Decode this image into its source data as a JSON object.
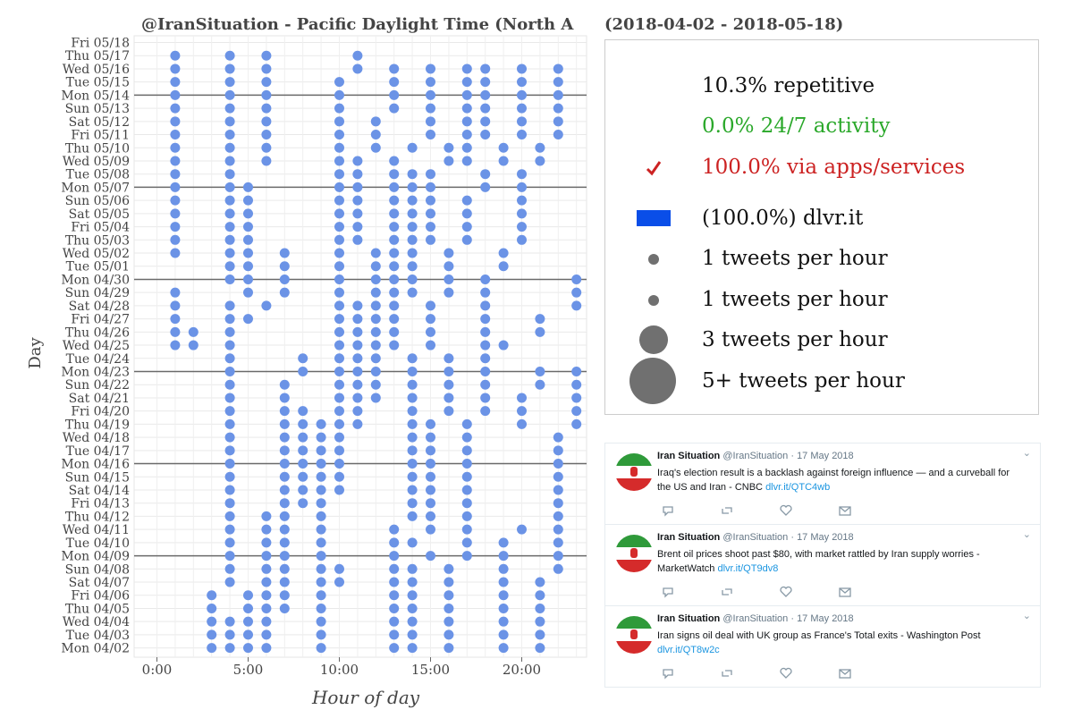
{
  "chart_data": {
    "type": "scatter",
    "title_left": "@IranSituation - Pacific Daylight Time (North A",
    "title_right": "(2018-04-02 - 2018-05-18)",
    "xlabel": "Hour of day",
    "ylabel": "Day",
    "xlim": [
      -0.5,
      23.5
    ],
    "x_ticks": [
      0,
      5,
      10,
      15,
      20
    ],
    "x_tick_labels": [
      "0:00",
      "5:00",
      "10:00",
      "15:00",
      "20:00"
    ],
    "grid": true,
    "days": [
      "Fri 05/18",
      "Thu 05/17",
      "Wed 05/16",
      "Tue 05/15",
      "Mon 05/14",
      "Sun 05/13",
      "Sat 05/12",
      "Fri 05/11",
      "Thu 05/10",
      "Wed 05/09",
      "Tue 05/08",
      "Mon 05/07",
      "Sun 05/06",
      "Sat 05/05",
      "Fri 05/04",
      "Thu 05/03",
      "Wed 05/02",
      "Tue 05/01",
      "Mon 04/30",
      "Sun 04/29",
      "Sat 04/28",
      "Fri 04/27",
      "Thu 04/26",
      "Wed 04/25",
      "Tue 04/24",
      "Mon 04/23",
      "Sun 04/22",
      "Sat 04/21",
      "Fri 04/20",
      "Thu 04/19",
      "Wed 04/18",
      "Tue 04/17",
      "Mon 04/16",
      "Sun 04/15",
      "Sat 04/14",
      "Fri 04/13",
      "Thu 04/12",
      "Wed 04/11",
      "Tue 04/10",
      "Mon 04/09",
      "Sun 04/08",
      "Sat 04/07",
      "Fri 04/06",
      "Thu 04/05",
      "Wed 04/04",
      "Tue 04/03",
      "Mon 04/02"
    ],
    "monday_separators": [
      "Mon 05/14",
      "Mon 05/07",
      "Mon 04/30",
      "Mon 04/23",
      "Mon 04/16",
      "Mon 04/09"
    ],
    "series": [
      {
        "name": "dlvr.it",
        "color": "#6b93e6",
        "hours_by_day": [
          [],
          [
            1,
            4,
            6,
            11
          ],
          [
            1,
            4,
            6,
            11,
            13,
            15,
            17,
            18,
            20,
            22
          ],
          [
            1,
            4,
            6,
            10,
            13,
            15,
            17,
            18,
            20,
            22
          ],
          [
            1,
            4,
            6,
            10,
            13,
            15,
            17,
            18,
            20,
            22
          ],
          [
            1,
            4,
            6,
            10,
            13,
            15,
            17,
            18,
            20,
            22
          ],
          [
            1,
            4,
            6,
            10,
            12,
            15,
            17,
            18,
            20,
            22
          ],
          [
            1,
            4,
            6,
            10,
            12,
            15,
            17,
            18,
            20,
            22
          ],
          [
            1,
            4,
            6,
            10,
            12,
            14,
            16,
            17,
            19,
            21
          ],
          [
            1,
            4,
            6,
            10,
            11,
            13,
            16,
            17,
            19,
            21
          ],
          [
            1,
            4,
            10,
            11,
            13,
            14,
            15,
            18,
            20
          ],
          [
            1,
            4,
            5,
            10,
            11,
            13,
            14,
            15,
            18,
            20
          ],
          [
            1,
            4,
            5,
            10,
            11,
            13,
            14,
            15,
            17,
            20
          ],
          [
            1,
            4,
            5,
            10,
            11,
            13,
            14,
            15,
            17,
            20
          ],
          [
            1,
            4,
            5,
            10,
            11,
            13,
            14,
            15,
            17,
            20
          ],
          [
            1,
            4,
            5,
            10,
            11,
            13,
            14,
            15,
            17,
            20
          ],
          [
            1,
            4,
            5,
            7,
            10,
            12,
            13,
            14,
            16,
            19
          ],
          [
            4,
            5,
            7,
            10,
            12,
            13,
            14,
            16,
            19
          ],
          [
            4,
            5,
            7,
            10,
            12,
            13,
            14,
            16,
            18,
            23
          ],
          [
            1,
            5,
            7,
            10,
            12,
            13,
            14,
            16,
            18,
            23
          ],
          [
            1,
            4,
            6,
            10,
            11,
            12,
            13,
            15,
            18,
            23
          ],
          [
            1,
            4,
            5,
            10,
            11,
            12,
            13,
            15,
            18,
            21
          ],
          [
            1,
            2,
            4,
            10,
            11,
            12,
            13,
            15,
            18,
            21
          ],
          [
            1,
            2,
            4,
            10,
            11,
            12,
            13,
            15,
            18,
            19
          ],
          [
            4,
            8,
            10,
            11,
            12,
            14,
            16,
            18
          ],
          [
            4,
            8,
            10,
            11,
            12,
            14,
            16,
            18,
            21,
            23
          ],
          [
            4,
            7,
            10,
            11,
            12,
            14,
            16,
            18,
            21,
            23
          ],
          [
            4,
            7,
            10,
            11,
            12,
            14,
            16,
            18,
            20,
            23
          ],
          [
            4,
            7,
            8,
            10,
            11,
            14,
            16,
            18,
            20,
            23
          ],
          [
            4,
            7,
            8,
            9,
            10,
            11,
            14,
            15,
            17,
            20,
            23
          ],
          [
            4,
            7,
            8,
            9,
            10,
            14,
            15,
            17,
            22
          ],
          [
            4,
            7,
            8,
            9,
            10,
            14,
            15,
            17,
            22
          ],
          [
            4,
            7,
            8,
            9,
            10,
            14,
            15,
            17,
            22
          ],
          [
            4,
            7,
            8,
            9,
            10,
            14,
            15,
            17,
            22
          ],
          [
            4,
            7,
            8,
            9,
            10,
            14,
            15,
            17,
            22
          ],
          [
            4,
            7,
            8,
            9,
            14,
            15,
            17,
            22
          ],
          [
            4,
            6,
            7,
            9,
            14,
            15,
            17,
            22
          ],
          [
            4,
            6,
            7,
            9,
            13,
            15,
            17,
            20,
            22
          ],
          [
            4,
            6,
            7,
            9,
            13,
            14,
            17,
            19,
            22
          ],
          [
            4,
            6,
            7,
            9,
            13,
            15,
            17,
            19,
            22
          ],
          [
            4,
            6,
            7,
            9,
            10,
            13,
            14,
            16,
            19,
            22
          ],
          [
            4,
            6,
            7,
            9,
            10,
            13,
            14,
            16,
            19,
            21
          ],
          [
            3,
            5,
            6,
            7,
            9,
            13,
            14,
            16,
            19,
            21
          ],
          [
            3,
            5,
            6,
            7,
            9,
            13,
            14,
            16,
            19,
            21
          ],
          [
            3,
            4,
            5,
            6,
            9,
            13,
            14,
            16,
            19,
            21
          ],
          [
            3,
            4,
            5,
            6,
            9,
            13,
            14,
            16,
            19,
            21
          ],
          [
            3,
            4,
            5,
            6,
            9,
            13,
            14,
            16,
            19,
            21
          ]
        ]
      }
    ]
  },
  "legend": {
    "repetitive": "10.3% repetitive",
    "activity": "0.0% 24/7 activity",
    "apps": "100.0% via apps/services",
    "apps_color": "#cc2222",
    "activity_color": "#2aa82a",
    "source": "(100.0%) dlvr.it",
    "source_color": "#0a4ee8",
    "size1a": "1 tweets per hour",
    "size1b": "1 tweets per hour",
    "size3": "3 tweets per hour",
    "size5": "5+ tweets per hour",
    "check_icon": "checkmark-icon"
  },
  "tweets": [
    {
      "name": "Iran Situation",
      "handle": "@IranSituation",
      "date": "· 17 May 2018",
      "text": "Iraq's election result is a backlash against foreign influence — and a curveball for the US and Iran - CNBC ",
      "link": "dlvr.it/QTC4wb"
    },
    {
      "name": "Iran Situation",
      "handle": "@IranSituation",
      "date": "· 17 May 2018",
      "text": "Brent oil prices shoot past $80, with market rattled by Iran supply worries - MarketWatch ",
      "link": "dlvr.it/QT9dv8"
    },
    {
      "name": "Iran Situation",
      "handle": "@IranSituation",
      "date": "· 17 May 2018",
      "text": "Iran signs oil deal with UK group as France's Total exits - Washington Post ",
      "link": "dlvr.it/QT8w2c"
    }
  ]
}
